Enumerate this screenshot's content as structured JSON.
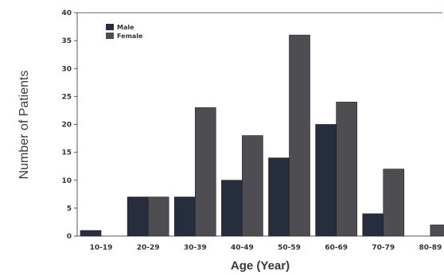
{
  "chart_data": {
    "type": "bar",
    "title": "",
    "xlabel": "Age (Year)",
    "ylabel": "Number of Patients",
    "ylim": [
      0,
      40
    ],
    "yticks": [
      0,
      5,
      10,
      15,
      20,
      25,
      30,
      35,
      40
    ],
    "categories": [
      "10-19",
      "20-29",
      "30-39",
      "40-49",
      "50-59",
      "60-69",
      "70-79",
      "80-89"
    ],
    "series": [
      {
        "name": "Male",
        "color": "#262d3d",
        "values": [
          1,
          7,
          7,
          10,
          14,
          20,
          4,
          0
        ]
      },
      {
        "name": "Female",
        "color": "#4e4e52",
        "values": [
          0,
          7,
          23,
          18,
          36,
          24,
          12,
          2
        ]
      }
    ],
    "legend": "top-left",
    "grid": false
  }
}
